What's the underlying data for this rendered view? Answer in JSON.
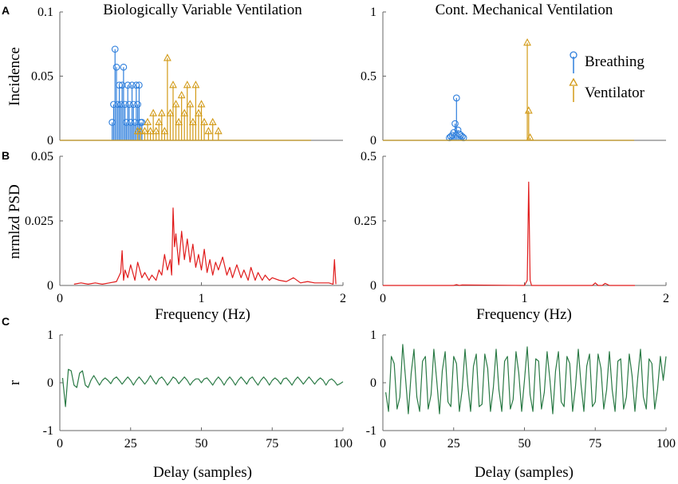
{
  "colors": {
    "breathing": "#2f7fdc",
    "ventilator": "#d29a17",
    "psd": "#e01b1b",
    "acf": "#2a7a45",
    "axis": "#666666"
  },
  "titles": {
    "left": "Biologically Variable Ventilation",
    "right": "Cont. Mechanical Ventilation"
  },
  "panel_labels": {
    "a": "A",
    "b": "B",
    "c": "C"
  },
  "ylabels": {
    "a": "Incidence",
    "b": "nrmlzd PSD",
    "c": "r"
  },
  "xlabels": {
    "b": "Frequency (Hz)",
    "c": "Delay (samples)"
  },
  "legend": {
    "breathing": "Breathing",
    "ventilator": "Ventilator"
  },
  "ticks": {
    "freq_x": [
      "0",
      "1",
      "2"
    ],
    "delay_x": [
      "0",
      "25",
      "50",
      "75",
      "100"
    ],
    "a_left_y": [
      "0",
      "0.05",
      "0.1"
    ],
    "a_right_y": [
      "0",
      "0.5",
      "1"
    ],
    "b_left_y": [
      "0",
      "0.025",
      "0.05"
    ],
    "b_right_y": [
      "0",
      "0.25",
      "0.5"
    ],
    "c_y": [
      "-1",
      "0",
      "1"
    ]
  },
  "chart_data": [
    {
      "type": "stem",
      "panel": "A-left",
      "title": "Biologically Variable Ventilation",
      "xlabel": "",
      "ylabel": "Incidence",
      "xlim": [
        0,
        2
      ],
      "ylim": [
        0,
        0.1
      ],
      "series": [
        {
          "name": "Breathing",
          "x": [
            0.37,
            0.38,
            0.39,
            0.4,
            0.41,
            0.42,
            0.43,
            0.44,
            0.45,
            0.46,
            0.47,
            0.48,
            0.49,
            0.5,
            0.51,
            0.52,
            0.53,
            0.54,
            0.55,
            0.56,
            0.57,
            0.58
          ],
          "values": [
            0.014,
            0.028,
            0.071,
            0.057,
            0.028,
            0.043,
            0.028,
            0.043,
            0.057,
            0.028,
            0.014,
            0.043,
            0.028,
            0.014,
            0.043,
            0.028,
            0.014,
            0.043,
            0.028,
            0.043,
            0.014,
            0.014
          ]
        },
        {
          "name": "Ventilator",
          "x": [
            0.55,
            0.57,
            0.6,
            0.62,
            0.64,
            0.66,
            0.68,
            0.7,
            0.72,
            0.74,
            0.76,
            0.78,
            0.8,
            0.82,
            0.84,
            0.86,
            0.88,
            0.9,
            0.92,
            0.94,
            0.96,
            0.98,
            1.0,
            1.02,
            1.05,
            1.08,
            1.12
          ],
          "values": [
            0.007,
            0.007,
            0.007,
            0.014,
            0.007,
            0.021,
            0.007,
            0.014,
            0.021,
            0.007,
            0.064,
            0.021,
            0.043,
            0.028,
            0.014,
            0.035,
            0.021,
            0.043,
            0.028,
            0.014,
            0.043,
            0.021,
            0.028,
            0.014,
            0.007,
            0.014,
            0.007
          ]
        }
      ]
    },
    {
      "type": "stem",
      "panel": "A-right",
      "title": "Cont. Mechanical Ventilation",
      "xlabel": "",
      "ylabel": "",
      "xlim": [
        0,
        2
      ],
      "ylim": [
        0,
        1
      ],
      "series": [
        {
          "name": "Breathing",
          "x": [
            0.47,
            0.48,
            0.49,
            0.5,
            0.51,
            0.52,
            0.53,
            0.54,
            0.55,
            0.56,
            0.57
          ],
          "values": [
            0.02,
            0.03,
            0.04,
            0.06,
            0.13,
            0.33,
            0.08,
            0.05,
            0.04,
            0.03,
            0.02
          ]
        },
        {
          "name": "Ventilator",
          "x": [
            1.02,
            1.03,
            1.04
          ],
          "values": [
            0.76,
            0.23,
            0.02
          ]
        }
      ]
    },
    {
      "type": "line",
      "panel": "B-left",
      "xlabel": "Frequency (Hz)",
      "ylabel": "nrmlzd PSD",
      "xlim": [
        0,
        2
      ],
      "ylim": [
        0,
        0.05
      ],
      "series": [
        {
          "name": "PSD",
          "x": [
            0.1,
            0.15,
            0.2,
            0.25,
            0.3,
            0.35,
            0.4,
            0.43,
            0.44,
            0.45,
            0.46,
            0.48,
            0.5,
            0.53,
            0.55,
            0.58,
            0.6,
            0.63,
            0.65,
            0.68,
            0.7,
            0.72,
            0.74,
            0.76,
            0.78,
            0.79,
            0.8,
            0.81,
            0.82,
            0.84,
            0.86,
            0.88,
            0.9,
            0.92,
            0.94,
            0.96,
            0.98,
            1.0,
            1.02,
            1.04,
            1.06,
            1.08,
            1.1,
            1.12,
            1.15,
            1.18,
            1.2,
            1.22,
            1.25,
            1.28,
            1.3,
            1.33,
            1.35,
            1.38,
            1.4,
            1.43,
            1.45,
            1.48,
            1.5,
            1.55,
            1.6,
            1.65,
            1.7,
            1.75,
            1.8,
            1.85,
            1.9,
            1.93,
            1.94,
            1.95
          ],
          "values": [
            0.0005,
            0.001,
            0.0005,
            0.001,
            0.0005,
            0.001,
            0.0015,
            0.005,
            0.0135,
            0.002,
            0.006,
            0.003,
            0.008,
            0.002,
            0.009,
            0.003,
            0.005,
            0.002,
            0.004,
            0.002,
            0.006,
            0.004,
            0.012,
            0.006,
            0.01,
            0.004,
            0.03,
            0.015,
            0.02,
            0.008,
            0.021,
            0.01,
            0.018,
            0.009,
            0.016,
            0.007,
            0.012,
            0.006,
            0.014,
            0.005,
            0.01,
            0.004,
            0.009,
            0.006,
            0.011,
            0.004,
            0.007,
            0.003,
            0.008,
            0.003,
            0.006,
            0.002,
            0.007,
            0.002,
            0.005,
            0.002,
            0.004,
            0.002,
            0.003,
            0.002,
            0.0015,
            0.003,
            0.001,
            0.0015,
            0.001,
            0.001,
            0.001,
            0.0005,
            0.01,
            0.0005
          ]
        }
      ]
    },
    {
      "type": "line",
      "panel": "B-right",
      "xlabel": "Frequency (Hz)",
      "ylabel": "",
      "xlim": [
        0,
        2
      ],
      "ylim": [
        0,
        0.5
      ],
      "series": [
        {
          "name": "PSD",
          "x": [
            0.0,
            0.5,
            0.52,
            0.54,
            0.56,
            1.0,
            1.02,
            1.03,
            1.04,
            1.05,
            1.07,
            1.48,
            1.5,
            1.52,
            1.55,
            1.57,
            1.6,
            1.78
          ],
          "values": [
            0.0,
            0.0,
            0.003,
            0.0,
            0.002,
            0.0,
            0.02,
            0.4,
            0.02,
            0.0,
            0.0,
            0.0,
            0.01,
            0.0,
            0.0,
            0.008,
            0.0,
            0.0
          ]
        }
      ]
    },
    {
      "type": "line",
      "panel": "C-left",
      "xlabel": "Delay (samples)",
      "ylabel": "r",
      "xlim": [
        0,
        100
      ],
      "ylim": [
        -1,
        1
      ],
      "series": [
        {
          "name": "r",
          "x": [
            1,
            2,
            3,
            4,
            5,
            6,
            7,
            8,
            9,
            10,
            11,
            12,
            13,
            14,
            15,
            16,
            17,
            18,
            19,
            20,
            21,
            22,
            23,
            24,
            25,
            26,
            27,
            28,
            29,
            30,
            31,
            32,
            33,
            34,
            35,
            36,
            37,
            38,
            39,
            40,
            41,
            42,
            43,
            44,
            45,
            46,
            47,
            48,
            49,
            50,
            51,
            52,
            53,
            54,
            55,
            56,
            57,
            58,
            59,
            60,
            61,
            62,
            63,
            64,
            65,
            66,
            67,
            68,
            69,
            70,
            71,
            72,
            73,
            74,
            75,
            76,
            77,
            78,
            79,
            80,
            81,
            82,
            83,
            84,
            85,
            86,
            87,
            88,
            89,
            90,
            91,
            92,
            93,
            94,
            95,
            96,
            97,
            98,
            99,
            100
          ],
          "values": [
            0.1,
            -0.5,
            0.28,
            0.25,
            -0.05,
            -0.1,
            0.2,
            0.25,
            -0.05,
            -0.1,
            0.05,
            0.15,
            0.05,
            -0.05,
            0.05,
            0.1,
            0.05,
            -0.02,
            0.08,
            0.12,
            0.05,
            -0.03,
            0.05,
            0.12,
            0.05,
            -0.05,
            0.05,
            0.12,
            0.05,
            -0.03,
            0.05,
            0.15,
            0.05,
            -0.03,
            0.08,
            0.12,
            0.05,
            -0.05,
            0.03,
            0.12,
            0.08,
            -0.02,
            0.05,
            0.12,
            0.05,
            -0.05,
            0.03,
            0.08,
            0.08,
            0.0,
            0.08,
            0.1,
            0.03,
            -0.05,
            0.05,
            0.12,
            0.05,
            -0.05,
            0.05,
            0.12,
            0.05,
            -0.05,
            0.05,
            0.12,
            0.05,
            -0.03,
            0.08,
            0.12,
            0.03,
            -0.05,
            0.05,
            0.12,
            0.05,
            -0.05,
            0.05,
            0.1,
            0.05,
            -0.03,
            0.08,
            0.1,
            0.03,
            -0.05,
            0.05,
            0.12,
            0.05,
            -0.03,
            0.05,
            0.12,
            0.05,
            -0.03,
            0.05,
            0.1,
            0.05,
            -0.05,
            0.05,
            0.08,
            0.03,
            -0.05,
            -0.02,
            0.02
          ]
        }
      ]
    },
    {
      "type": "line",
      "panel": "C-right",
      "xlabel": "Delay (samples)",
      "ylabel": "",
      "xlim": [
        0,
        100
      ],
      "ylim": [
        -1,
        1
      ],
      "series": [
        {
          "name": "r",
          "x": [
            1,
            2,
            3,
            4,
            5,
            6,
            7,
            8,
            9,
            10,
            11,
            12,
            13,
            14,
            15,
            16,
            17,
            18,
            19,
            20,
            21,
            22,
            23,
            24,
            25,
            26,
            27,
            28,
            29,
            30,
            31,
            32,
            33,
            34,
            35,
            36,
            37,
            38,
            39,
            40,
            41,
            42,
            43,
            44,
            45,
            46,
            47,
            48,
            49,
            50,
            51,
            52,
            53,
            54,
            55,
            56,
            57,
            58,
            59,
            60,
            61,
            62,
            63,
            64,
            65,
            66,
            67,
            68,
            69,
            70,
            71,
            72,
            73,
            74,
            75,
            76,
            77,
            78,
            79,
            80,
            81,
            82,
            83,
            84,
            85,
            86,
            87,
            88,
            89,
            90,
            91,
            92,
            93,
            94,
            95,
            96,
            97,
            98,
            99,
            100
          ],
          "values": [
            -0.2,
            -0.6,
            0.55,
            0.4,
            -0.55,
            -0.3,
            0.8,
            0.1,
            -0.65,
            0.2,
            0.7,
            -0.3,
            -0.6,
            0.45,
            0.55,
            -0.55,
            -0.25,
            0.7,
            0.05,
            -0.65,
            0.25,
            0.65,
            -0.4,
            -0.5,
            0.55,
            0.4,
            -0.6,
            -0.15,
            0.7,
            -0.05,
            -0.6,
            0.35,
            0.6,
            -0.5,
            -0.45,
            0.6,
            0.3,
            -0.6,
            -0.1,
            0.7,
            -0.15,
            -0.6,
            0.45,
            0.55,
            -0.55,
            -0.35,
            0.65,
            0.2,
            -0.6,
            0.05,
            0.75,
            -0.25,
            -0.6,
            0.5,
            0.45,
            -0.55,
            -0.2,
            0.65,
            0.05,
            -0.65,
            0.25,
            0.65,
            -0.4,
            -0.5,
            0.55,
            0.4,
            -0.6,
            -0.1,
            0.7,
            -0.05,
            -0.6,
            0.35,
            0.6,
            -0.5,
            -0.4,
            0.6,
            0.3,
            -0.55,
            -0.15,
            0.65,
            -0.15,
            -0.6,
            0.45,
            0.5,
            -0.55,
            -0.3,
            0.6,
            0.15,
            -0.6,
            0.1,
            0.7,
            -0.3,
            -0.55,
            0.5,
            0.4,
            -0.55,
            -0.15,
            0.55,
            0.05,
            0.55
          ]
        }
      ]
    }
  ]
}
